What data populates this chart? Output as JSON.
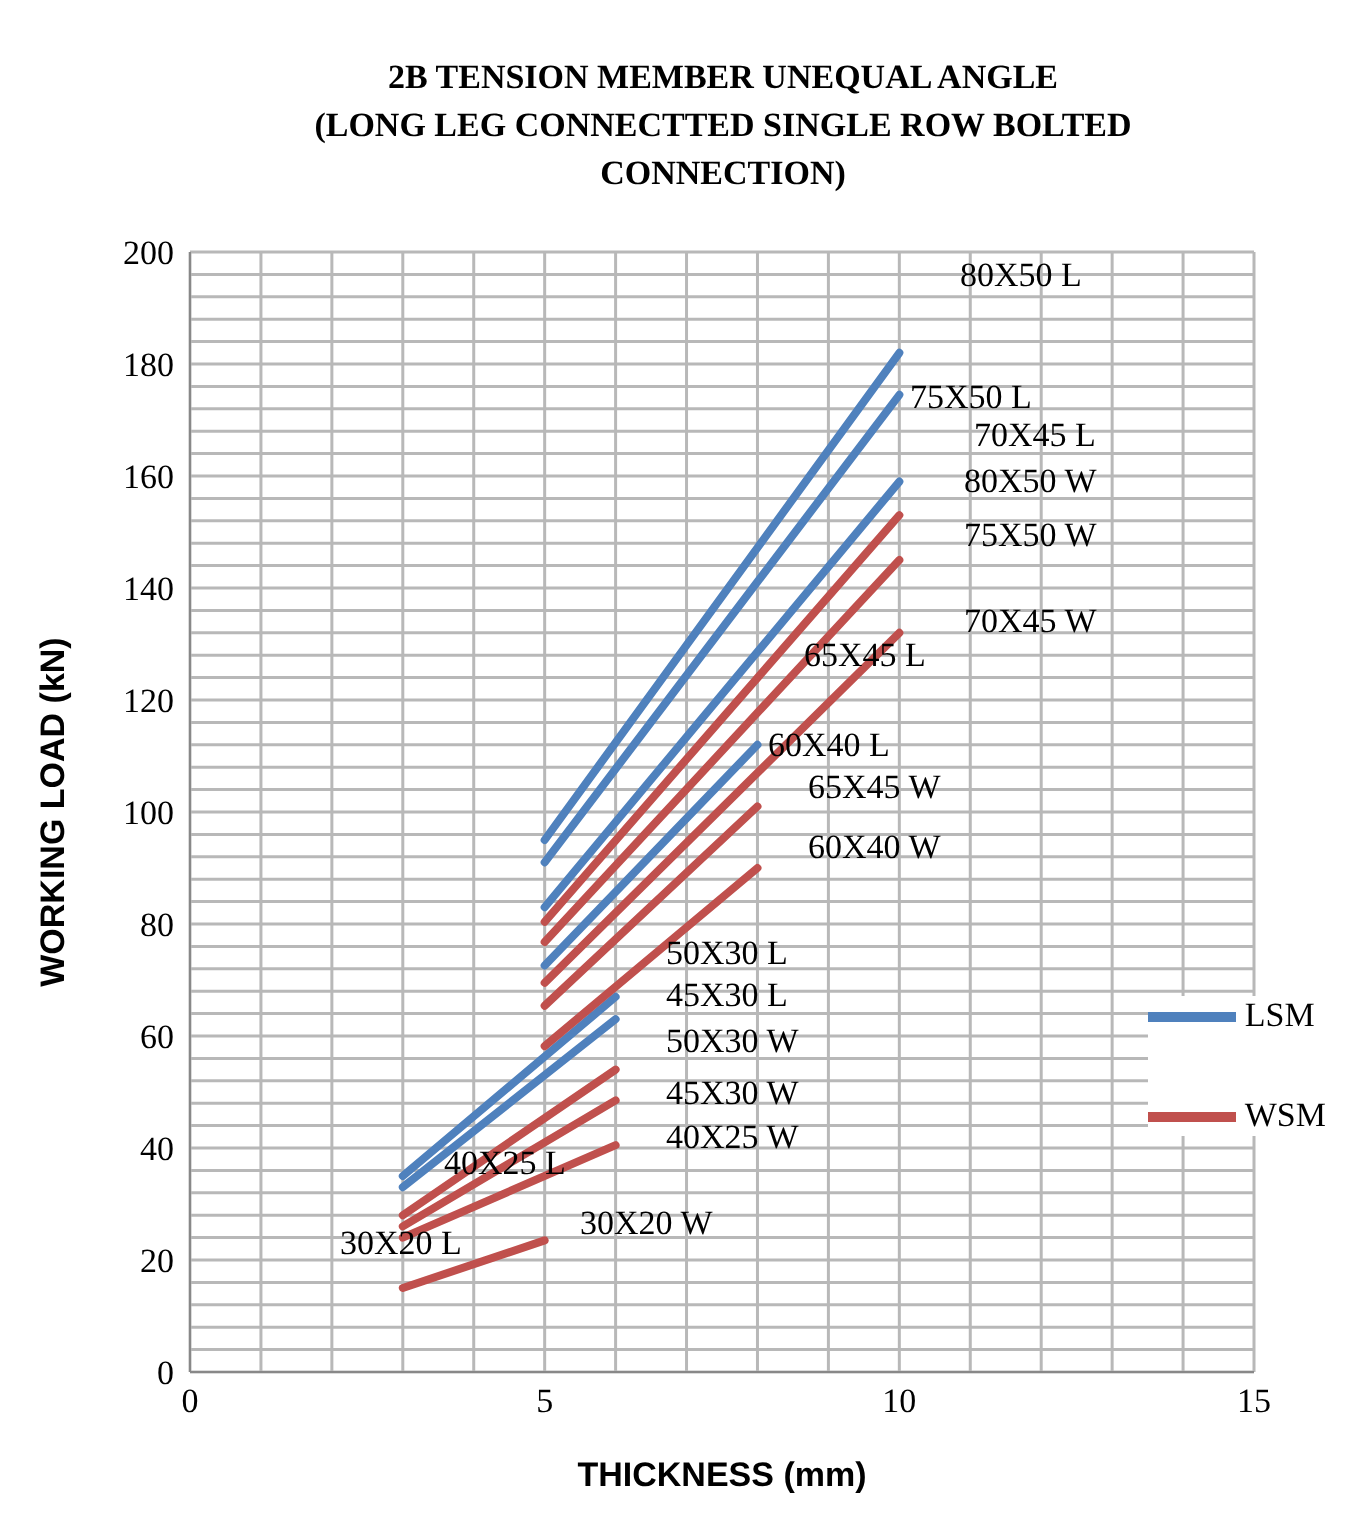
{
  "chart_data": {
    "type": "line",
    "title": "2B   TENSION MEMBER UNEQUAL ANGLE\n(LONG LEG CONNECTTED SINGLE ROW BOLTED\nCONNECTION)",
    "xlabel": "THICKNESS (mm)",
    "ylabel": "WORKING LOAD (kN)",
    "xlim": [
      0,
      15
    ],
    "xticks": [
      0,
      {
        "value": 1,
        "label": null
      },
      {
        "value": 2,
        "label": null
      },
      {
        "value": 3,
        "label": null
      },
      {
        "value": 4,
        "label": null
      },
      5,
      {
        "value": 6,
        "label": null
      },
      {
        "value": 7,
        "label": null
      },
      {
        "value": 8,
        "label": null
      },
      {
        "value": 9,
        "label": null
      },
      10,
      {
        "value": 11,
        "label": null
      },
      {
        "value": 12,
        "label": null
      },
      {
        "value": 13,
        "label": null
      },
      {
        "value": 14,
        "label": null
      },
      15
    ],
    "ylim": [
      0,
      200
    ],
    "yticks": [
      0,
      {
        "value": 4,
        "label": null
      },
      {
        "value": 8,
        "label": null
      },
      {
        "value": 12,
        "label": null
      },
      {
        "value": 16,
        "label": null
      },
      20,
      {
        "value": 24,
        "label": null
      },
      {
        "value": 28,
        "label": null
      },
      {
        "value": 32,
        "label": null
      },
      {
        "value": 36,
        "label": null
      },
      40,
      {
        "value": 44,
        "label": null
      },
      {
        "value": 48,
        "label": null
      },
      {
        "value": 52,
        "label": null
      },
      {
        "value": 56,
        "label": null
      },
      60,
      {
        "value": 64,
        "label": null
      },
      {
        "value": 68,
        "label": null
      },
      {
        "value": 72,
        "label": null
      },
      {
        "value": 76,
        "label": null
      },
      80,
      {
        "value": 84,
        "label": null
      },
      {
        "value": 88,
        "label": null
      },
      {
        "value": 92,
        "label": null
      },
      {
        "value": 96,
        "label": null
      },
      100,
      {
        "value": 104,
        "label": null
      },
      {
        "value": 108,
        "label": null
      },
      {
        "value": 112,
        "label": null
      },
      {
        "value": 116,
        "label": null
      },
      120,
      {
        "value": 124,
        "label": null
      },
      {
        "value": 128,
        "label": null
      },
      {
        "value": 132,
        "label": null
      },
      {
        "value": 136,
        "label": null
      },
      140,
      {
        "value": 144,
        "label": null
      },
      {
        "value": 148,
        "label": null
      },
      {
        "value": 152,
        "label": null
      },
      {
        "value": 156,
        "label": null
      },
      160,
      {
        "value": 164,
        "label": null
      },
      {
        "value": 168,
        "label": null
      },
      {
        "value": 172,
        "label": null
      },
      {
        "value": 176,
        "label": null
      },
      180,
      {
        "value": 184,
        "label": null
      },
      {
        "value": 188,
        "label": null
      },
      {
        "value": 192,
        "label": null
      },
      {
        "value": 196,
        "label": null
      },
      200
    ],
    "grid": true,
    "legend": "right",
    "marker": "none",
    "line_style": "solid",
    "series": [
      {
        "name": "LSM",
        "color": "#4f81bd",
        "x": [
          3,
          6
        ],
        "values": [
          35,
          67
        ]
      },
      {
        "color": "#4f81bd",
        "x": [
          3,
          6
        ],
        "values": [
          33,
          63
        ]
      },
      {
        "color": "#4f81bd",
        "x": [
          5,
          10
        ],
        "values": [
          95,
          182
        ]
      },
      {
        "color": "#4f81bd",
        "x": [
          5,
          10
        ],
        "values": [
          91,
          174.5
        ]
      },
      {
        "color": "#4f81bd",
        "x": [
          5,
          10
        ],
        "values": [
          83,
          159
        ]
      },
      {
        "color": "#4f81bd",
        "x": [
          5,
          8
        ],
        "values": [
          72.6,
          112
        ]
      },
      {
        "name": "WSM",
        "color": "#c0504d",
        "x": [
          3,
          5
        ],
        "values": [
          15,
          23.5
        ]
      },
      {
        "color": "#c0504d",
        "x": [
          3,
          6
        ],
        "values": [
          28,
          54
        ]
      },
      {
        "color": "#c0504d",
        "x": [
          3,
          6
        ],
        "values": [
          26,
          48.5
        ]
      },
      {
        "color": "#c0504d",
        "x": [
          3,
          6
        ],
        "values": [
          24,
          40.5
        ]
      },
      {
        "color": "#c0504d",
        "x": [
          5,
          10
        ],
        "values": [
          80.4,
          153
        ]
      },
      {
        "color": "#c0504d",
        "x": [
          5,
          10
        ],
        "values": [
          76.8,
          145
        ]
      },
      {
        "color": "#c0504d",
        "x": [
          5,
          10
        ],
        "values": [
          69.5,
          132
        ]
      },
      {
        "color": "#c0504d",
        "x": [
          5,
          8
        ],
        "values": [
          65.4,
          101
        ]
      },
      {
        "color": "#c0504d",
        "x": [
          5,
          8
        ],
        "values": [
          58.2,
          90
        ]
      }
    ],
    "annotations": [
      "80X50 L",
      "75X50 L",
      "70X45 L",
      "80X50 W",
      "75X50 W",
      "70X45 W",
      "65X45 L",
      "60X40 L",
      "65X45 W",
      "60X40 W",
      "50X30 L",
      "45X30 L",
      "50X30 W",
      "45X30 W",
      "40X25 W",
      "40X25 L",
      "30X20 L",
      "30X20 W"
    ]
  }
}
